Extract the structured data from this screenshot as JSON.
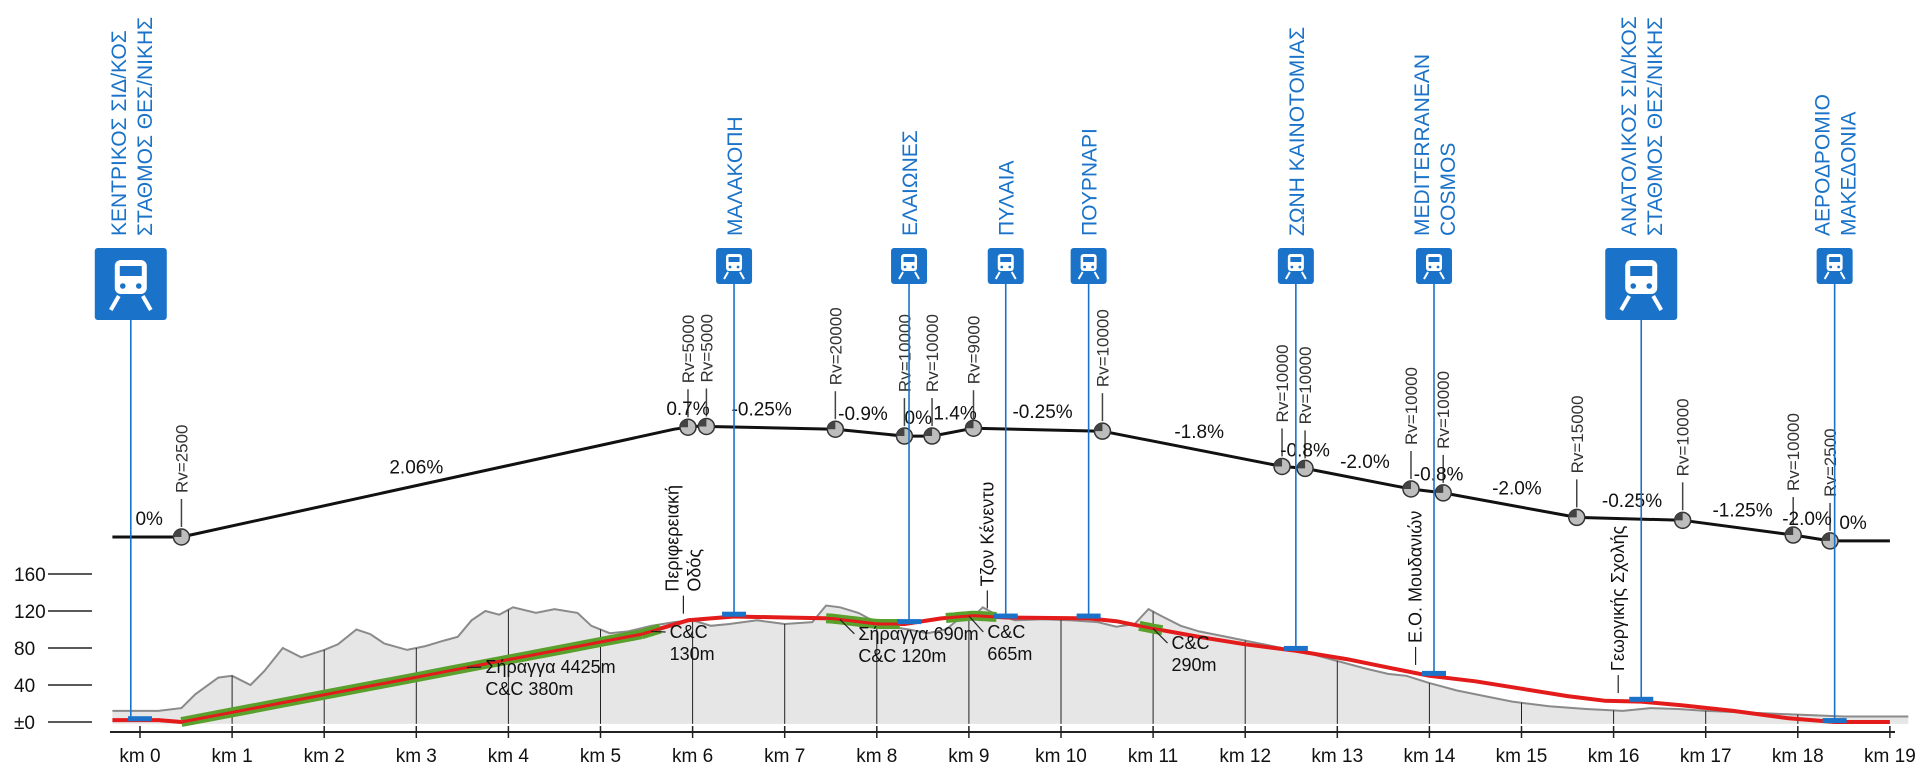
{
  "colors": {
    "track": "#e31b1b",
    "tunnel": "#5aa02c",
    "station_blue": "#1a73c9",
    "terrain_fill": "#e6e6e6",
    "terrain_line": "#8a8a8a",
    "grade_line": "#111111"
  },
  "chart_data": {
    "type": "longitudinal-profile",
    "x_unit": "km",
    "xlim": [
      0,
      19
    ],
    "ylim": [
      0,
      160
    ],
    "km_ticks": [
      "km 0",
      "km 1",
      "km 2",
      "km 3",
      "km 4",
      "km 5",
      "km 6",
      "km 7",
      "km 8",
      "km 9",
      "km 10",
      "km 11",
      "km 12",
      "km 13",
      "km 14",
      "km 15",
      "km 16",
      "km 17",
      "km 18",
      "km 19"
    ],
    "elevation_ticks": [
      {
        "value": 0,
        "label": "±0"
      },
      {
        "value": 40,
        "label": "40"
      },
      {
        "value": 80,
        "label": "80"
      },
      {
        "value": 120,
        "label": "120"
      },
      {
        "value": 160,
        "label": "160"
      }
    ],
    "stations": [
      {
        "km": -0.1,
        "lines": [
          "ΚΕΝΤΡΙΚΟΣ ΣΙΔ/ΚΟΣ",
          "ΣΤΑΘΜΟΣ ΘΕΣ/ΝΙΚΗΣ"
        ],
        "major": true
      },
      {
        "km": 6.45,
        "lines": [
          "ΜΑΛΑΚΟΠΗ"
        ],
        "major": false
      },
      {
        "km": 8.35,
        "lines": [
          "ΕΛΑΙΩΝΕΣ"
        ],
        "major": false
      },
      {
        "km": 9.4,
        "lines": [
          "ΠΥΛΑΙΑ"
        ],
        "major": false
      },
      {
        "km": 10.3,
        "lines": [
          "ΠΟΥΡΝΑΡΙ"
        ],
        "major": false
      },
      {
        "km": 12.55,
        "lines": [
          "ΖΩΝΗ ΚΑΙΝΟΤΟΜΙΑΣ"
        ],
        "major": false
      },
      {
        "km": 14.05,
        "lines": [
          "MEDITERRANEAN",
          "COSMOS"
        ],
        "major": false
      },
      {
        "km": 16.3,
        "lines": [
          "ΑΝΑΤΟΛΙΚΟΣ ΣΙΔ/ΚΟΣ",
          "ΣΤΑΘΜΟΣ ΘΕΣ/ΝΙΚΗΣ"
        ],
        "major": true
      },
      {
        "km": 18.4,
        "lines": [
          "ΑΕΡΟΔΡΟΜΙΟ",
          "ΜΑΚΕΔΟΝΙΑ"
        ],
        "major": false
      }
    ],
    "grade_profile": [
      {
        "km": -0.3,
        "level": 0
      },
      {
        "km": 0.45,
        "level": 0
      },
      {
        "km": 5.8,
        "level": 110
      },
      {
        "km": 5.95,
        "level": 112
      },
      {
        "km": 6.05,
        "level": 113
      },
      {
        "km": 7.55,
        "level": 110
      },
      {
        "km": 8.3,
        "level": 103
      },
      {
        "km": 8.6,
        "level": 103
      },
      {
        "km": 9.05,
        "level": 111
      },
      {
        "km": 10.45,
        "level": 108
      },
      {
        "km": 12.4,
        "level": 72
      },
      {
        "km": 12.65,
        "level": 70
      },
      {
        "km": 13.8,
        "level": 49
      },
      {
        "km": 14.15,
        "level": 45
      },
      {
        "km": 15.6,
        "level": 20
      },
      {
        "km": 16.75,
        "level": 17
      },
      {
        "km": 17.95,
        "level": 2
      },
      {
        "km": 18.35,
        "level": -4
      },
      {
        "km": 19.0,
        "level": -4
      }
    ],
    "grades": [
      {
        "km": 0.1,
        "text": "0%"
      },
      {
        "km": 3.0,
        "text": "2.06%"
      },
      {
        "km": 5.95,
        "text": "0.7%"
      },
      {
        "km": 6.75,
        "text": "-0.25%"
      },
      {
        "km": 7.85,
        "text": "-0.9%"
      },
      {
        "km": 8.45,
        "text": "0%"
      },
      {
        "km": 8.85,
        "text": "1.4%"
      },
      {
        "km": 9.8,
        "text": "-0.25%"
      },
      {
        "km": 11.5,
        "text": "-1.8%"
      },
      {
        "km": 12.65,
        "text": "-0.8%"
      },
      {
        "km": 13.3,
        "text": "-2.0%"
      },
      {
        "km": 14.1,
        "text": "-0.8%"
      },
      {
        "km": 14.95,
        "text": "-2.0%"
      },
      {
        "km": 16.2,
        "text": "-0.25%"
      },
      {
        "km": 17.4,
        "text": "-1.25%"
      },
      {
        "km": 18.1,
        "text": "-2.0%"
      },
      {
        "km": 18.6,
        "text": "0%"
      }
    ],
    "vertical_curves": [
      {
        "km": 0.45,
        "text": "Rv=2500"
      },
      {
        "km": 5.95,
        "text": "Rv=5000"
      },
      {
        "km": 6.15,
        "text": "Rv=5000"
      },
      {
        "km": 7.55,
        "text": "Rv=20000"
      },
      {
        "km": 8.3,
        "text": "Rv=10000"
      },
      {
        "km": 8.6,
        "text": "Rv=10000"
      },
      {
        "km": 9.05,
        "text": "Rv=9000"
      },
      {
        "km": 10.45,
        "text": "Rv=10000"
      },
      {
        "km": 12.4,
        "text": "Rv=10000"
      },
      {
        "km": 12.65,
        "text": "Rv=10000"
      },
      {
        "km": 13.8,
        "text": "Rv=10000"
      },
      {
        "km": 14.15,
        "text": "Rv=10000"
      },
      {
        "km": 15.6,
        "text": "Rv=15000"
      },
      {
        "km": 16.75,
        "text": "Rv=10000"
      },
      {
        "km": 17.95,
        "text": "Rv=10000"
      },
      {
        "km": 18.35,
        "text": "Rv=2500"
      }
    ],
    "terrain": [
      [
        -0.3,
        12
      ],
      [
        0.2,
        12
      ],
      [
        0.45,
        15
      ],
      [
        0.6,
        30
      ],
      [
        0.85,
        48
      ],
      [
        1.0,
        50
      ],
      [
        1.2,
        40
      ],
      [
        1.35,
        55
      ],
      [
        1.55,
        80
      ],
      [
        1.75,
        70
      ],
      [
        2.0,
        78
      ],
      [
        2.15,
        84
      ],
      [
        2.35,
        100
      ],
      [
        2.5,
        95
      ],
      [
        2.65,
        85
      ],
      [
        2.9,
        78
      ],
      [
        3.1,
        82
      ],
      [
        3.3,
        88
      ],
      [
        3.45,
        92
      ],
      [
        3.6,
        110
      ],
      [
        3.75,
        120
      ],
      [
        3.9,
        116
      ],
      [
        4.05,
        124
      ],
      [
        4.3,
        118
      ],
      [
        4.5,
        122
      ],
      [
        4.75,
        118
      ],
      [
        4.9,
        104
      ],
      [
        5.1,
        96
      ],
      [
        5.3,
        98
      ],
      [
        5.55,
        104
      ],
      [
        5.8,
        108
      ],
      [
        6.0,
        110
      ],
      [
        6.2,
        104
      ],
      [
        6.4,
        106
      ],
      [
        6.7,
        110
      ],
      [
        7.0,
        106
      ],
      [
        7.3,
        108
      ],
      [
        7.45,
        126
      ],
      [
        7.6,
        124
      ],
      [
        7.8,
        118
      ],
      [
        7.95,
        110
      ],
      [
        8.15,
        103
      ],
      [
        8.35,
        100
      ],
      [
        8.55,
        96
      ],
      [
        8.75,
        100
      ],
      [
        8.9,
        112
      ],
      [
        9.05,
        114
      ],
      [
        9.15,
        124
      ],
      [
        9.3,
        116
      ],
      [
        9.5,
        110
      ],
      [
        9.8,
        111
      ],
      [
        10.1,
        110
      ],
      [
        10.4,
        108
      ],
      [
        10.6,
        103
      ],
      [
        10.8,
        106
      ],
      [
        10.95,
        122
      ],
      [
        11.1,
        114
      ],
      [
        11.3,
        104
      ],
      [
        11.5,
        98
      ],
      [
        11.8,
        92
      ],
      [
        12.1,
        86
      ],
      [
        12.4,
        80
      ],
      [
        12.7,
        74
      ],
      [
        13.0,
        66
      ],
      [
        13.3,
        58
      ],
      [
        13.55,
        52
      ],
      [
        13.75,
        50
      ],
      [
        14.0,
        42
      ],
      [
        14.3,
        34
      ],
      [
        14.6,
        28
      ],
      [
        14.9,
        22
      ],
      [
        15.3,
        17
      ],
      [
        15.7,
        14
      ],
      [
        16.1,
        12
      ],
      [
        16.4,
        15
      ],
      [
        16.7,
        14
      ],
      [
        17.0,
        12
      ],
      [
        17.5,
        10
      ],
      [
        18.0,
        8
      ],
      [
        18.5,
        6
      ],
      [
        19.2,
        6
      ]
    ],
    "track_alignment": [
      [
        -0.3,
        2
      ],
      [
        0.2,
        2
      ],
      [
        0.45,
        0
      ],
      [
        5.45,
        95
      ],
      [
        5.95,
        110
      ],
      [
        6.45,
        114
      ],
      [
        7.0,
        113
      ],
      [
        7.5,
        112
      ],
      [
        8.0,
        106
      ],
      [
        8.3,
        106
      ],
      [
        8.7,
        112
      ],
      [
        9.05,
        115
      ],
      [
        9.4,
        113
      ],
      [
        10.3,
        112
      ],
      [
        10.6,
        109
      ],
      [
        11.0,
        101
      ],
      [
        11.5,
        92
      ],
      [
        12.0,
        84
      ],
      [
        12.55,
        77
      ],
      [
        13.1,
        68
      ],
      [
        13.6,
        58
      ],
      [
        14.0,
        50
      ],
      [
        14.5,
        44
      ],
      [
        15.0,
        36
      ],
      [
        15.5,
        28
      ],
      [
        15.9,
        23
      ],
      [
        16.3,
        22
      ],
      [
        16.75,
        18
      ],
      [
        17.3,
        12
      ],
      [
        17.9,
        4
      ],
      [
        18.4,
        0
      ],
      [
        19.0,
        0
      ]
    ],
    "track_markers": [
      {
        "km": 0.0,
        "elev": 3
      },
      {
        "km": 6.45,
        "elev": 116
      },
      {
        "km": 8.35,
        "elev": 108
      },
      {
        "km": 9.4,
        "elev": 114
      },
      {
        "km": 10.3,
        "elev": 114
      },
      {
        "km": 12.55,
        "elev": 79
      },
      {
        "km": 14.05,
        "elev": 52
      },
      {
        "km": 16.3,
        "elev": 24
      },
      {
        "km": 18.4,
        "elev": 1
      }
    ],
    "tunnels": [
      {
        "from": 0.45,
        "to": 5.45
      },
      {
        "from": 5.45,
        "to": 5.65
      },
      {
        "from": 7.45,
        "to": 8.25
      },
      {
        "from": 8.75,
        "to": 9.3
      },
      {
        "from": 10.85,
        "to": 11.1
      }
    ],
    "annotations": [
      {
        "id": "tunnel-1",
        "lines": [
          "Σήραγγα 4425m",
          "C&C 380m"
        ],
        "km": 3.75,
        "elev": 42,
        "align": "start"
      },
      {
        "id": "cc-130",
        "lines": [
          "C&C",
          "130m"
        ],
        "km": 5.75,
        "elev": 80,
        "align": "start"
      },
      {
        "id": "tunnel-690",
        "lines": [
          "Σήραγγα 690m",
          "C&C 120m"
        ],
        "km": 7.8,
        "elev": 78,
        "align": "start"
      },
      {
        "id": "cc-665",
        "lines": [
          "C&C",
          "665m"
        ],
        "km": 9.2,
        "elev": 80,
        "align": "start"
      },
      {
        "id": "cc-290",
        "lines": [
          "C&C",
          "290m"
        ],
        "km": 11.2,
        "elev": 68,
        "align": "start"
      }
    ],
    "road_crossings": [
      {
        "lines": [
          "Περιφερειακή",
          "Οδός"
        ],
        "km": 5.9
      },
      {
        "lines": [
          "Τζον Κένεντυ"
        ],
        "km": 9.2
      },
      {
        "lines": [
          "Ε.Ο. Μουδανιών"
        ],
        "km": 13.85
      },
      {
        "lines": [
          "Γεωργικής Σχολής"
        ],
        "km": 16.05
      }
    ]
  }
}
